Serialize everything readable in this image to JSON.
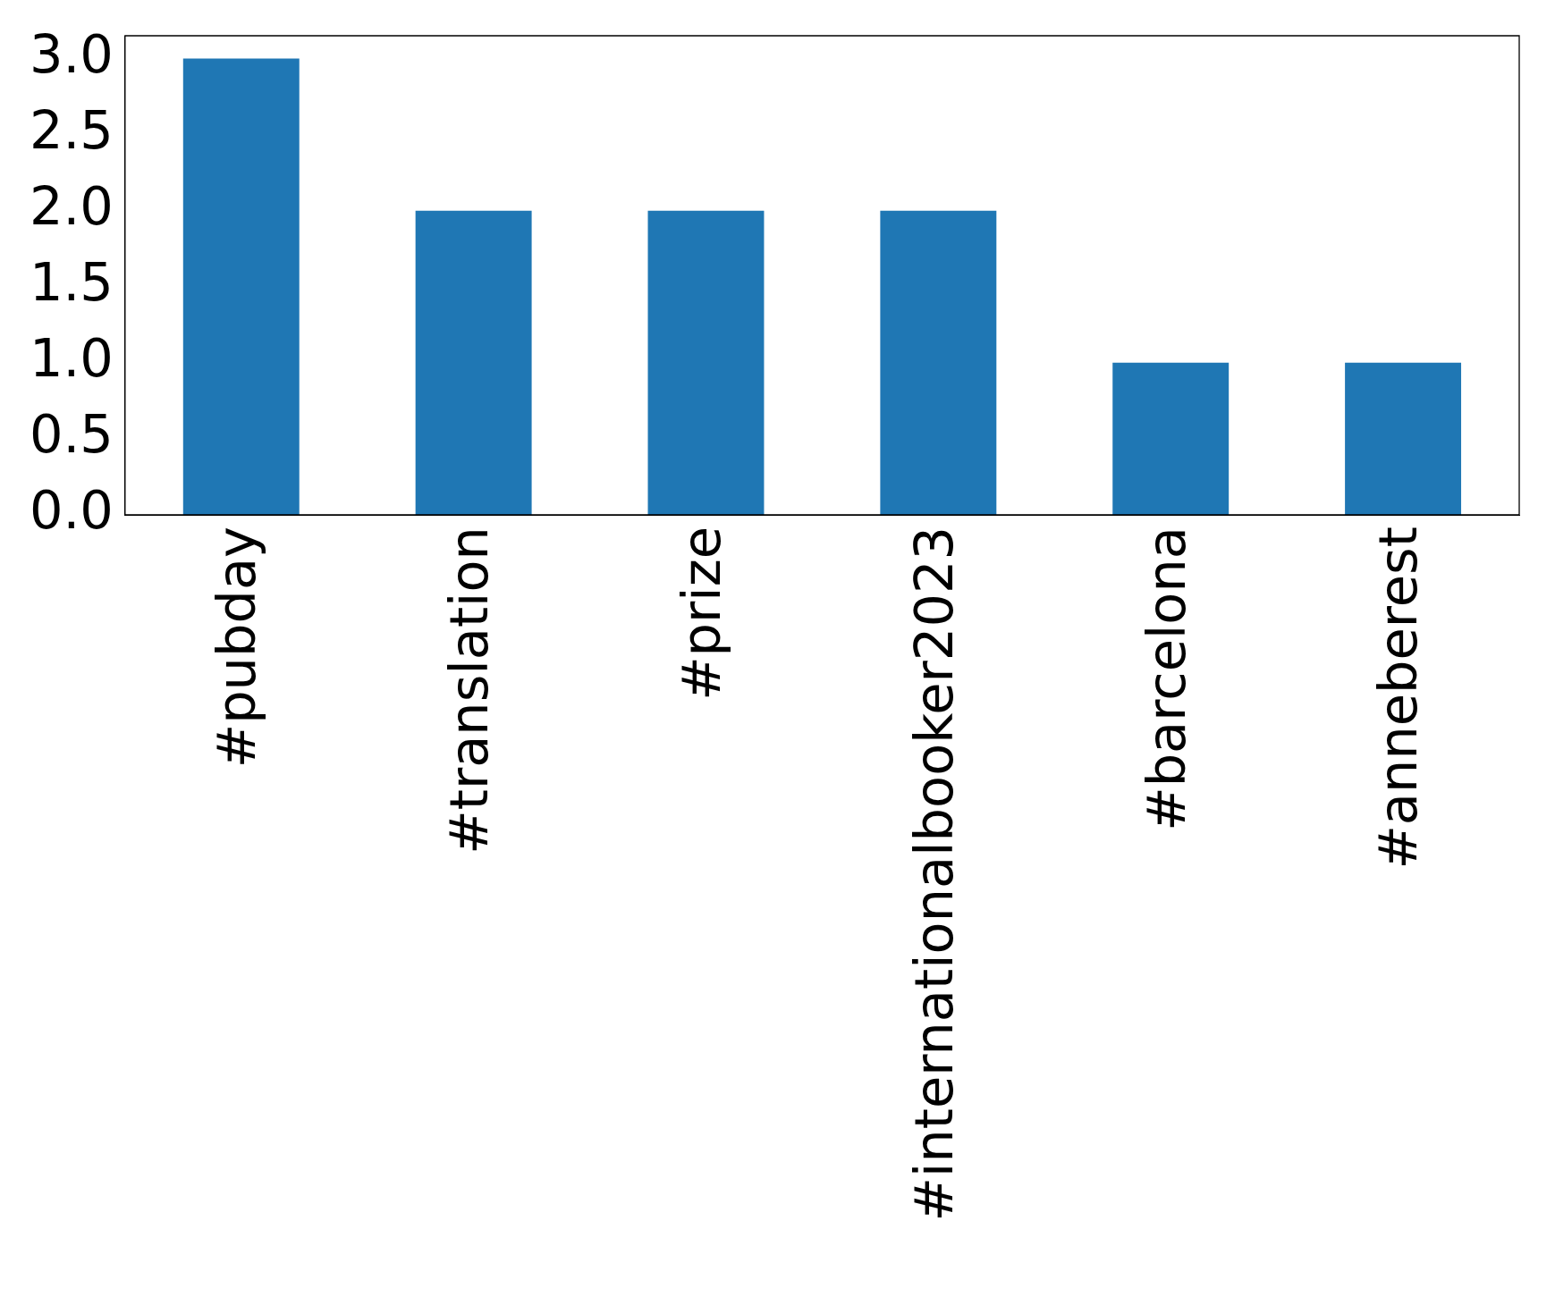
{
  "chart_data": {
    "type": "bar",
    "categories": [
      "#pubday",
      "#translation",
      "#prize",
      "#internationalbooker2023",
      "#barcelona",
      "#anneberest"
    ],
    "values": [
      3,
      2,
      2,
      2,
      1,
      1
    ],
    "color": "#1f77b4",
    "ylim": [
      0,
      3.15
    ],
    "yticks": [
      {
        "value": 0,
        "label": "0.0"
      },
      {
        "value": 0.5,
        "label": "0.5"
      },
      {
        "value": 1,
        "label": "1.0"
      },
      {
        "value": 1.5,
        "label": "1.5"
      },
      {
        "value": 2,
        "label": "2.0"
      },
      {
        "value": 2.5,
        "label": "2.5"
      },
      {
        "value": 3,
        "label": "3.0"
      }
    ],
    "grid": false,
    "legend": false
  }
}
